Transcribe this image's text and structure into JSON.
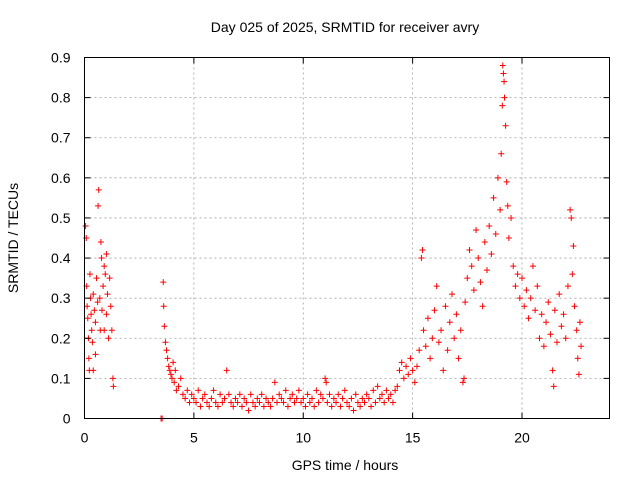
{
  "chart_data": {
    "type": "scatter",
    "title": "Day 025 of 2025, SRMTID for receiver avry",
    "xlabel": "GPS time / hours",
    "ylabel": "SRMTID / TECUs",
    "xlim": [
      0,
      24
    ],
    "ylim": [
      0,
      0.9
    ],
    "xticks": [
      0,
      5,
      10,
      15,
      20
    ],
    "xtick_labels": [
      "0",
      "5",
      "10",
      "15",
      "20"
    ],
    "yticks": [
      0,
      0.1,
      0.2,
      0.3,
      0.4,
      0.5,
      0.6,
      0.7,
      0.8,
      0.9
    ],
    "ytick_labels": [
      "0",
      "0.1",
      "0.2",
      "0.3",
      "0.4",
      "0.5",
      "0.6",
      "0.7",
      "0.8",
      "0.9"
    ],
    "grid": true,
    "marker": "plus",
    "color": "#ff0000",
    "series": [
      {
        "name": "SRMTID",
        "points": [
          [
            0.05,
            0.48
          ],
          [
            0.08,
            0.45
          ],
          [
            0.1,
            0.33
          ],
          [
            0.12,
            0.28
          ],
          [
            0.15,
            0.25
          ],
          [
            0.18,
            0.2
          ],
          [
            0.2,
            0.15
          ],
          [
            0.22,
            0.12
          ],
          [
            0.25,
            0.36
          ],
          [
            0.28,
            0.3
          ],
          [
            0.3,
            0.26
          ],
          [
            0.33,
            0.22
          ],
          [
            0.36,
            0.19
          ],
          [
            0.4,
            0.31
          ],
          [
            0.45,
            0.27
          ],
          [
            0.5,
            0.24
          ],
          [
            0.55,
            0.35
          ],
          [
            0.6,
            0.29
          ],
          [
            0.62,
            0.53
          ],
          [
            0.65,
            0.57
          ],
          [
            0.7,
            0.3
          ],
          [
            0.72,
            0.22
          ],
          [
            0.75,
            0.44
          ],
          [
            0.78,
            0.4
          ],
          [
            0.8,
            0.27
          ],
          [
            0.85,
            0.33
          ],
          [
            0.9,
            0.22
          ],
          [
            0.95,
            0.36
          ],
          [
            1.0,
            0.26
          ],
          [
            1.05,
            0.31
          ],
          [
            1.1,
            0.2
          ],
          [
            1.15,
            0.35
          ],
          [
            1.2,
            0.28
          ],
          [
            1.25,
            0.22
          ],
          [
            1.3,
            0.1
          ],
          [
            1.32,
            0.08
          ],
          [
            0.5,
            0.16
          ],
          [
            0.4,
            0.12
          ],
          [
            1.0,
            0.41
          ],
          [
            0.9,
            0.38
          ],
          [
            3.5,
            0.0
          ],
          [
            3.55,
            0.0
          ],
          [
            3.6,
            0.34
          ],
          [
            3.62,
            0.28
          ],
          [
            3.65,
            0.23
          ],
          [
            3.7,
            0.19
          ],
          [
            3.75,
            0.17
          ],
          [
            3.8,
            0.15
          ],
          [
            3.85,
            0.13
          ],
          [
            3.9,
            0.12
          ],
          [
            3.95,
            0.11
          ],
          [
            4.0,
            0.1
          ],
          [
            4.05,
            0.14
          ],
          [
            4.1,
            0.09
          ],
          [
            4.15,
            0.12
          ],
          [
            4.2,
            0.07
          ],
          [
            4.3,
            0.08
          ],
          [
            4.4,
            0.1
          ],
          [
            4.5,
            0.06
          ],
          [
            4.6,
            0.05
          ],
          [
            4.7,
            0.07
          ],
          [
            4.8,
            0.04
          ],
          [
            4.9,
            0.06
          ],
          [
            5.0,
            0.05
          ],
          [
            5.1,
            0.04
          ],
          [
            5.2,
            0.07
          ],
          [
            5.3,
            0.03
          ],
          [
            5.4,
            0.05
          ],
          [
            5.5,
            0.06
          ],
          [
            5.6,
            0.04
          ],
          [
            5.7,
            0.03
          ],
          [
            5.8,
            0.05
          ],
          [
            5.9,
            0.07
          ],
          [
            6.0,
            0.04
          ],
          [
            6.1,
            0.03
          ],
          [
            6.2,
            0.06
          ],
          [
            6.3,
            0.04
          ],
          [
            6.4,
            0.05
          ],
          [
            6.5,
            0.12
          ],
          [
            6.6,
            0.06
          ],
          [
            6.7,
            0.04
          ],
          [
            6.8,
            0.03
          ],
          [
            6.9,
            0.05
          ],
          [
            7.0,
            0.04
          ],
          [
            7.1,
            0.06
          ],
          [
            7.2,
            0.03
          ],
          [
            7.3,
            0.05
          ],
          [
            7.4,
            0.04
          ],
          [
            7.5,
            0.02
          ],
          [
            7.6,
            0.06
          ],
          [
            7.7,
            0.04
          ],
          [
            7.8,
            0.03
          ],
          [
            7.9,
            0.05
          ],
          [
            8.0,
            0.04
          ],
          [
            8.1,
            0.06
          ],
          [
            8.2,
            0.03
          ],
          [
            8.3,
            0.05
          ],
          [
            8.4,
            0.04
          ],
          [
            8.5,
            0.03
          ],
          [
            8.6,
            0.05
          ],
          [
            8.7,
            0.09
          ],
          [
            8.8,
            0.04
          ],
          [
            8.9,
            0.06
          ],
          [
            9.0,
            0.05
          ],
          [
            9.1,
            0.04
          ],
          [
            9.2,
            0.07
          ],
          [
            9.3,
            0.03
          ],
          [
            9.4,
            0.05
          ],
          [
            9.5,
            0.06
          ],
          [
            9.6,
            0.04
          ],
          [
            9.7,
            0.05
          ],
          [
            9.8,
            0.07
          ],
          [
            9.9,
            0.04
          ],
          [
            10.0,
            0.05
          ],
          [
            10.1,
            0.03
          ],
          [
            10.2,
            0.06
          ],
          [
            10.3,
            0.04
          ],
          [
            10.4,
            0.05
          ],
          [
            10.5,
            0.03
          ],
          [
            10.6,
            0.07
          ],
          [
            10.7,
            0.04
          ],
          [
            10.8,
            0.06
          ],
          [
            10.9,
            0.05
          ],
          [
            11.0,
            0.1
          ],
          [
            11.05,
            0.09
          ],
          [
            11.1,
            0.04
          ],
          [
            11.2,
            0.06
          ],
          [
            11.3,
            0.03
          ],
          [
            11.4,
            0.05
          ],
          [
            11.5,
            0.04
          ],
          [
            11.6,
            0.06
          ],
          [
            11.7,
            0.03
          ],
          [
            11.8,
            0.05
          ],
          [
            11.9,
            0.07
          ],
          [
            12.0,
            0.04
          ],
          [
            12.1,
            0.03
          ],
          [
            12.2,
            0.05
          ],
          [
            12.3,
            0.02
          ],
          [
            12.4,
            0.06
          ],
          [
            12.5,
            0.04
          ],
          [
            12.6,
            0.03
          ],
          [
            12.7,
            0.05
          ],
          [
            12.8,
            0.04
          ],
          [
            12.9,
            0.06
          ],
          [
            13.0,
            0.05
          ],
          [
            13.1,
            0.03
          ],
          [
            13.2,
            0.07
          ],
          [
            13.3,
            0.04
          ],
          [
            13.4,
            0.08
          ],
          [
            13.5,
            0.05
          ],
          [
            13.6,
            0.06
          ],
          [
            13.7,
            0.04
          ],
          [
            13.8,
            0.07
          ],
          [
            13.9,
            0.05
          ],
          [
            14.0,
            0.06
          ],
          [
            14.1,
            0.04
          ],
          [
            14.2,
            0.07
          ],
          [
            14.3,
            0.08
          ],
          [
            14.4,
            0.12
          ],
          [
            14.5,
            0.14
          ],
          [
            14.6,
            0.1
          ],
          [
            14.7,
            0.13
          ],
          [
            14.8,
            0.11
          ],
          [
            14.9,
            0.15
          ],
          [
            15.0,
            0.12
          ],
          [
            15.1,
            0.09
          ],
          [
            15.2,
            0.13
          ],
          [
            15.3,
            0.17
          ],
          [
            15.4,
            0.4
          ],
          [
            15.45,
            0.42
          ],
          [
            15.5,
            0.22
          ],
          [
            15.6,
            0.18
          ],
          [
            15.7,
            0.25
          ],
          [
            15.8,
            0.15
          ],
          [
            15.9,
            0.2
          ],
          [
            16.0,
            0.27
          ],
          [
            16.1,
            0.33
          ],
          [
            16.2,
            0.19
          ],
          [
            16.3,
            0.22
          ],
          [
            16.4,
            0.12
          ],
          [
            16.5,
            0.28
          ],
          [
            16.6,
            0.17
          ],
          [
            16.7,
            0.24
          ],
          [
            16.8,
            0.31
          ],
          [
            16.9,
            0.2
          ],
          [
            17.0,
            0.26
          ],
          [
            17.1,
            0.15
          ],
          [
            17.2,
            0.22
          ],
          [
            17.3,
            0.09
          ],
          [
            17.35,
            0.1
          ],
          [
            17.4,
            0.29
          ],
          [
            17.5,
            0.35
          ],
          [
            17.6,
            0.42
          ],
          [
            17.7,
            0.38
          ],
          [
            17.8,
            0.32
          ],
          [
            17.9,
            0.47
          ],
          [
            18.0,
            0.4
          ],
          [
            18.1,
            0.34
          ],
          [
            18.2,
            0.28
          ],
          [
            18.3,
            0.44
          ],
          [
            18.4,
            0.37
          ],
          [
            18.5,
            0.48
          ],
          [
            18.6,
            0.41
          ],
          [
            18.7,
            0.55
          ],
          [
            18.8,
            0.46
          ],
          [
            18.9,
            0.6
          ],
          [
            19.0,
            0.52
          ],
          [
            19.05,
            0.66
          ],
          [
            19.1,
            0.78
          ],
          [
            19.12,
            0.88
          ],
          [
            19.15,
            0.86
          ],
          [
            19.18,
            0.84
          ],
          [
            19.2,
            0.8
          ],
          [
            19.25,
            0.73
          ],
          [
            19.3,
            0.59
          ],
          [
            19.35,
            0.53
          ],
          [
            19.4,
            0.45
          ],
          [
            19.5,
            0.5
          ],
          [
            19.6,
            0.38
          ],
          [
            19.7,
            0.33
          ],
          [
            19.8,
            0.36
          ],
          [
            19.9,
            0.3
          ],
          [
            20.0,
            0.35
          ],
          [
            20.1,
            0.28
          ],
          [
            20.2,
            0.32
          ],
          [
            20.3,
            0.25
          ],
          [
            20.4,
            0.3
          ],
          [
            20.5,
            0.38
          ],
          [
            20.6,
            0.27
          ],
          [
            20.7,
            0.33
          ],
          [
            20.8,
            0.2
          ],
          [
            20.9,
            0.26
          ],
          [
            21.0,
            0.18
          ],
          [
            21.1,
            0.24
          ],
          [
            21.2,
            0.29
          ],
          [
            21.3,
            0.21
          ],
          [
            21.4,
            0.12
          ],
          [
            21.45,
            0.08
          ],
          [
            21.5,
            0.27
          ],
          [
            21.6,
            0.19
          ],
          [
            21.7,
            0.31
          ],
          [
            21.8,
            0.23
          ],
          [
            21.9,
            0.26
          ],
          [
            22.0,
            0.2
          ],
          [
            22.1,
            0.33
          ],
          [
            22.2,
            0.52
          ],
          [
            22.25,
            0.5
          ],
          [
            22.3,
            0.36
          ],
          [
            22.35,
            0.43
          ],
          [
            22.4,
            0.28
          ],
          [
            22.5,
            0.22
          ],
          [
            22.55,
            0.15
          ],
          [
            22.6,
            0.11
          ],
          [
            22.65,
            0.24
          ],
          [
            22.7,
            0.18
          ]
        ]
      }
    ]
  }
}
